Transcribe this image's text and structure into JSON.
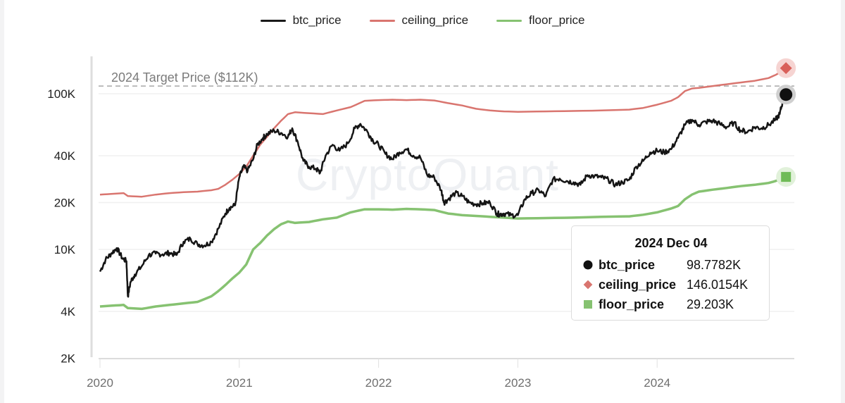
{
  "legend": {
    "items": [
      {
        "label": "btc_price",
        "color": "#1a1a1a"
      },
      {
        "label": "ceiling_price",
        "color": "#d9756f"
      },
      {
        "label": "floor_price",
        "color": "#86c271"
      }
    ]
  },
  "annotation": {
    "target_label": "2024 Target Price ($112K)",
    "target_value": 112000
  },
  "watermark": "CryptoQuant",
  "tooltip": {
    "date": "2024 Dec 04",
    "rows": [
      {
        "name": "btc_price",
        "value": "98.7782K",
        "marker": "circle",
        "color": "#111111"
      },
      {
        "name": "ceiling_price",
        "value": "146.0154K",
        "marker": "diamond",
        "color": "#d9756f"
      },
      {
        "name": "floor_price",
        "value": "29.203K",
        "marker": "square",
        "color": "#86c271"
      }
    ]
  },
  "chart_data": {
    "type": "line",
    "title": "",
    "xlabel": "",
    "ylabel": "",
    "yscale": "log",
    "ylim": [
      2000,
      150000
    ],
    "xlim": [
      2020.0,
      2024.97
    ],
    "y_ticks": [
      {
        "label": "100K",
        "value": 100000
      },
      {
        "label": "40K",
        "value": 40000
      },
      {
        "label": "20K",
        "value": 20000
      },
      {
        "label": "10K",
        "value": 10000
      },
      {
        "label": "4K",
        "value": 4000
      },
      {
        "label": "2K",
        "value": 2000
      }
    ],
    "x_ticks": [
      {
        "label": "2020",
        "value": 2020
      },
      {
        "label": "2021",
        "value": 2021
      },
      {
        "label": "2022",
        "value": 2022
      },
      {
        "label": "2023",
        "value": 2023
      },
      {
        "label": "2024",
        "value": 2024
      }
    ],
    "legend_position": "top",
    "grid": true,
    "series": [
      {
        "name": "btc_price",
        "color": "#1a1a1a",
        "x": [
          2020.0,
          2020.04,
          2020.08,
          2020.12,
          2020.16,
          2020.19,
          2020.2,
          2020.22,
          2020.25,
          2020.3,
          2020.35,
          2020.4,
          2020.45,
          2020.5,
          2020.55,
          2020.6,
          2020.65,
          2020.7,
          2020.75,
          2020.8,
          2020.85,
          2020.9,
          2020.93,
          2020.97,
          2021.0,
          2021.03,
          2021.06,
          2021.1,
          2021.13,
          2021.17,
          2021.2,
          2021.25,
          2021.3,
          2021.35,
          2021.38,
          2021.42,
          2021.46,
          2021.5,
          2021.55,
          2021.58,
          2021.62,
          2021.67,
          2021.72,
          2021.78,
          2021.83,
          2021.87,
          2021.92,
          2021.96,
          2022.0,
          2022.05,
          2022.1,
          2022.15,
          2022.2,
          2022.25,
          2022.3,
          2022.35,
          2022.4,
          2022.45,
          2022.47,
          2022.5,
          2022.55,
          2022.6,
          2022.65,
          2022.7,
          2022.75,
          2022.8,
          2022.85,
          2022.87,
          2022.9,
          2022.95,
          2023.0,
          2023.05,
          2023.1,
          2023.15,
          2023.2,
          2023.25,
          2023.3,
          2023.35,
          2023.4,
          2023.45,
          2023.5,
          2023.55,
          2023.6,
          2023.65,
          2023.7,
          2023.75,
          2023.8,
          2023.85,
          2023.9,
          2023.95,
          2024.0,
          2024.05,
          2024.1,
          2024.15,
          2024.2,
          2024.25,
          2024.3,
          2024.35,
          2024.4,
          2024.45,
          2024.5,
          2024.55,
          2024.6,
          2024.65,
          2024.7,
          2024.75,
          2024.8,
          2024.85,
          2024.88,
          2024.9,
          2024.925
        ],
        "values": [
          7200,
          8600,
          9400,
          10200,
          8800,
          8400,
          5000,
          6200,
          6900,
          7800,
          9200,
          9400,
          9300,
          9500,
          9200,
          11200,
          11700,
          10800,
          10600,
          11200,
          13600,
          17000,
          18500,
          19200,
          29000,
          34000,
          32000,
          38000,
          47000,
          52000,
          55000,
          58000,
          56000,
          53000,
          60000,
          49000,
          37000,
          34000,
          33000,
          31000,
          40000,
          47000,
          43000,
          48000,
          60000,
          64000,
          57000,
          50000,
          47000,
          41000,
          38000,
          42000,
          44000,
          40000,
          39000,
          30000,
          29000,
          24000,
          20000,
          21000,
          23000,
          22000,
          20000,
          19500,
          19800,
          20000,
          17000,
          16800,
          17000,
          16600,
          16600,
          21000,
          23000,
          24000,
          22000,
          28000,
          28500,
          27500,
          27000,
          26000,
          30000,
          29500,
          29000,
          28000,
          26000,
          27000,
          28000,
          34000,
          37000,
          42000,
          43000,
          42000,
          44000,
          52000,
          63000,
          68000,
          63000,
          66000,
          67000,
          64000,
          61000,
          65000,
          58000,
          57000,
          61000,
          60000,
          63000,
          68000,
          74000,
          88000,
          98778
        ]
      },
      {
        "name": "ceiling_price",
        "color": "#d9756f",
        "x": [
          2020.0,
          2020.08,
          2020.17,
          2020.2,
          2020.3,
          2020.4,
          2020.5,
          2020.6,
          2020.7,
          2020.8,
          2020.85,
          2020.9,
          2020.95,
          2021.0,
          2021.05,
          2021.1,
          2021.15,
          2021.2,
          2021.25,
          2021.3,
          2021.35,
          2021.4,
          2021.5,
          2021.6,
          2021.7,
          2021.8,
          2021.9,
          2022.0,
          2022.1,
          2022.2,
          2022.3,
          2022.4,
          2022.5,
          2022.6,
          2022.7,
          2022.8,
          2022.9,
          2023.0,
          2023.2,
          2023.4,
          2023.6,
          2023.8,
          2023.9,
          2024.0,
          2024.1,
          2024.15,
          2024.2,
          2024.25,
          2024.3,
          2024.4,
          2024.5,
          2024.6,
          2024.7,
          2024.8,
          2024.85,
          2024.9,
          2024.925
        ],
        "values": [
          22500,
          22700,
          23000,
          22000,
          21800,
          22500,
          23000,
          23300,
          23500,
          24000,
          24500,
          26000,
          28000,
          30500,
          34000,
          40000,
          47000,
          53000,
          60000,
          67000,
          74000,
          76000,
          75000,
          74000,
          78000,
          82000,
          90000,
          91000,
          91500,
          91000,
          91500,
          90500,
          87000,
          84000,
          80000,
          78000,
          77000,
          76500,
          77000,
          77500,
          78000,
          79000,
          81000,
          85000,
          90000,
          95000,
          104000,
          108000,
          109000,
          112000,
          115000,
          118000,
          121000,
          126000,
          132000,
          140000,
          146015
        ]
      },
      {
        "name": "floor_price",
        "color": "#86c271",
        "x": [
          2020.0,
          2020.08,
          2020.17,
          2020.2,
          2020.3,
          2020.4,
          2020.5,
          2020.6,
          2020.7,
          2020.8,
          2020.85,
          2020.9,
          2020.95,
          2021.0,
          2021.05,
          2021.1,
          2021.15,
          2021.2,
          2021.25,
          2021.3,
          2021.35,
          2021.4,
          2021.5,
          2021.6,
          2021.7,
          2021.8,
          2021.9,
          2022.0,
          2022.1,
          2022.2,
          2022.3,
          2022.4,
          2022.5,
          2022.6,
          2022.7,
          2022.8,
          2022.9,
          2023.0,
          2023.2,
          2023.4,
          2023.6,
          2023.8,
          2023.9,
          2024.0,
          2024.1,
          2024.15,
          2024.2,
          2024.25,
          2024.3,
          2024.4,
          2024.5,
          2024.6,
          2024.7,
          2024.8,
          2024.85,
          2024.9,
          2024.925
        ],
        "values": [
          4300,
          4350,
          4400,
          4200,
          4150,
          4300,
          4400,
          4500,
          4600,
          5000,
          5400,
          5900,
          6500,
          7100,
          8000,
          10000,
          11000,
          12300,
          13500,
          14500,
          15100,
          14800,
          15000,
          15600,
          16000,
          17300,
          18100,
          18100,
          18000,
          18200,
          18100,
          17900,
          17000,
          16600,
          16400,
          16200,
          16000,
          15800,
          15900,
          16000,
          16200,
          16300,
          16700,
          17300,
          18300,
          19000,
          21000,
          22500,
          23500,
          24200,
          24800,
          25500,
          26000,
          26700,
          27500,
          28500,
          29203
        ]
      }
    ],
    "annotations": [
      {
        "type": "hline",
        "value": 112000,
        "style": "dashed",
        "label": "2024 Target Price ($112K)"
      }
    ],
    "tooltip": {
      "date": "2024 Dec 04",
      "btc_price": 98778.2,
      "ceiling_price": 146015.4,
      "floor_price": 29203
    }
  }
}
